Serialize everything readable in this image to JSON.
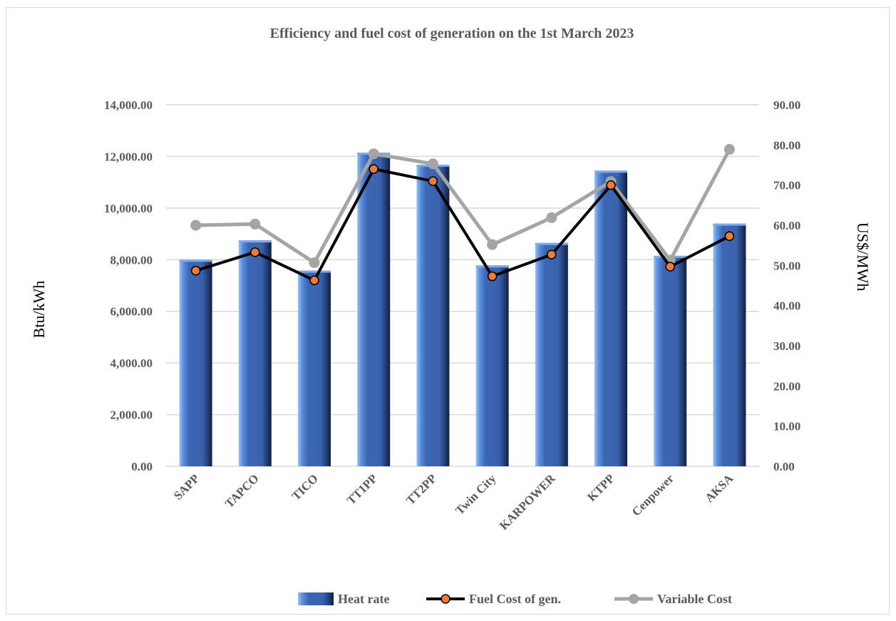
{
  "chart_data": {
    "type": "bar",
    "title": "Efficiency and fuel cost of generation on the 1st March 2023",
    "categories": [
      "SAPP",
      "TAPCO",
      "TICO",
      "TT1PP",
      "TT2PP",
      "Twin City",
      "KARPOWER",
      "KTPP",
      "Cenpower",
      "AKSA"
    ],
    "y_left": {
      "label": "Btu/kWh",
      "ylim": [
        0,
        14000
      ],
      "ticks": [
        "0.00",
        "2,000.00",
        "4,000.00",
        "6,000.00",
        "8,000.00",
        "10,000.00",
        "12,000.00",
        "14,000.00"
      ]
    },
    "y_right": {
      "label": "US$/MWh",
      "ylim": [
        0,
        90
      ],
      "ticks": [
        "0.00",
        "10.00",
        "20.00",
        "30.00",
        "40.00",
        "50.00",
        "60.00",
        "70.00",
        "80.00",
        "90.00"
      ]
    },
    "series": [
      {
        "name": "Heat rate",
        "kind": "bar",
        "axis": "left",
        "color": "#4472C4",
        "values": [
          8000,
          8750,
          7580,
          12150,
          11680,
          7780,
          8650,
          11450,
          8150,
          9400
        ]
      },
      {
        "name": "Fuel Cost of gen.",
        "kind": "line",
        "axis": "right",
        "color": "#000000",
        "marker_color": "#ED7D31",
        "values": [
          48.7,
          53.3,
          46.3,
          74.0,
          71.0,
          47.3,
          52.7,
          70.0,
          49.7,
          57.3
        ]
      },
      {
        "name": "Variable Cost",
        "kind": "line",
        "axis": "right",
        "color": "#A5A5A5",
        "marker_color": "#A5A5A5",
        "values": [
          60.0,
          60.3,
          50.7,
          77.8,
          75.3,
          55.2,
          61.9,
          70.9,
          51.3,
          78.9
        ]
      }
    ],
    "grid": true,
    "legend_position": "bottom"
  }
}
